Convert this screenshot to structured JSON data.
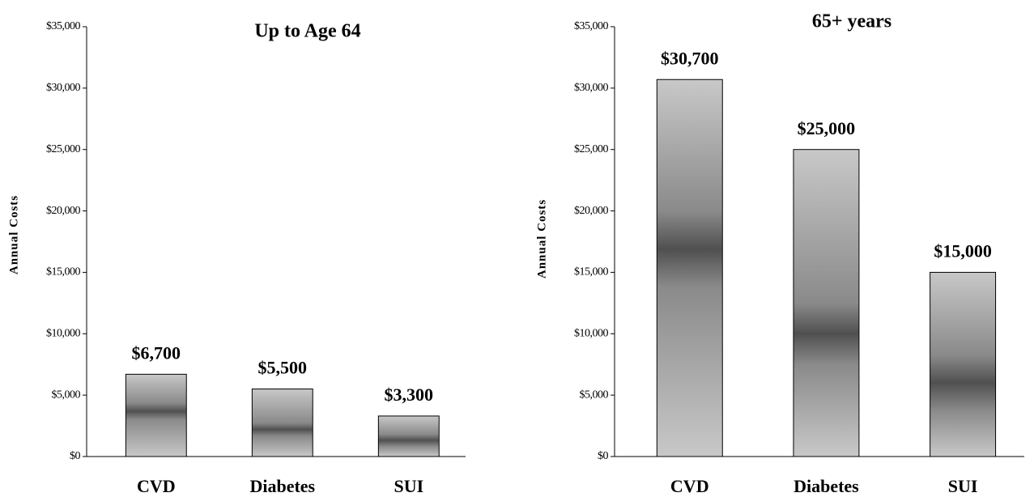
{
  "chart_data": [
    {
      "type": "bar",
      "title": "Up to Age 64",
      "y_label": "Annual Costs",
      "categories": [
        "CVD",
        "Diabetes",
        "SUI"
      ],
      "values": [
        6700,
        5500,
        3300
      ],
      "value_labels": [
        "$6,700",
        "$5,500",
        "$3,300"
      ],
      "color": "#505050",
      "ylim": [
        0,
        35000
      ],
      "yticks": [
        {
          "value": 0,
          "label": "$0"
        },
        {
          "value": 5000,
          "label": "$5,000"
        },
        {
          "value": 10000,
          "label": "$10,000"
        },
        {
          "value": 15000,
          "label": "$15,000"
        },
        {
          "value": 20000,
          "label": "$20,000"
        },
        {
          "value": 25000,
          "label": "$25,000"
        },
        {
          "value": 30000,
          "label": "$30,000"
        },
        {
          "value": 35000,
          "label": "$35,000"
        }
      ]
    },
    {
      "type": "bar",
      "title": "65+ years",
      "y_label": "Annual Costs",
      "categories": [
        "CVD",
        "Diabetes",
        "SUI"
      ],
      "values": [
        30700,
        25000,
        15000
      ],
      "value_labels": [
        "$30,700",
        "$25,000",
        "$15,000"
      ],
      "color": "#505050",
      "ylim": [
        0,
        35000
      ],
      "yticks": [
        {
          "value": 0,
          "label": "$0"
        },
        {
          "value": 5000,
          "label": "$5,000"
        },
        {
          "value": 10000,
          "label": "$10,000"
        },
        {
          "value": 15000,
          "label": "$15,000"
        },
        {
          "value": 20000,
          "label": "$20,000"
        },
        {
          "value": 25000,
          "label": "$25,000"
        },
        {
          "value": 30000,
          "label": "$30,000"
        },
        {
          "value": 35000,
          "label": "$35,000"
        }
      ]
    }
  ]
}
